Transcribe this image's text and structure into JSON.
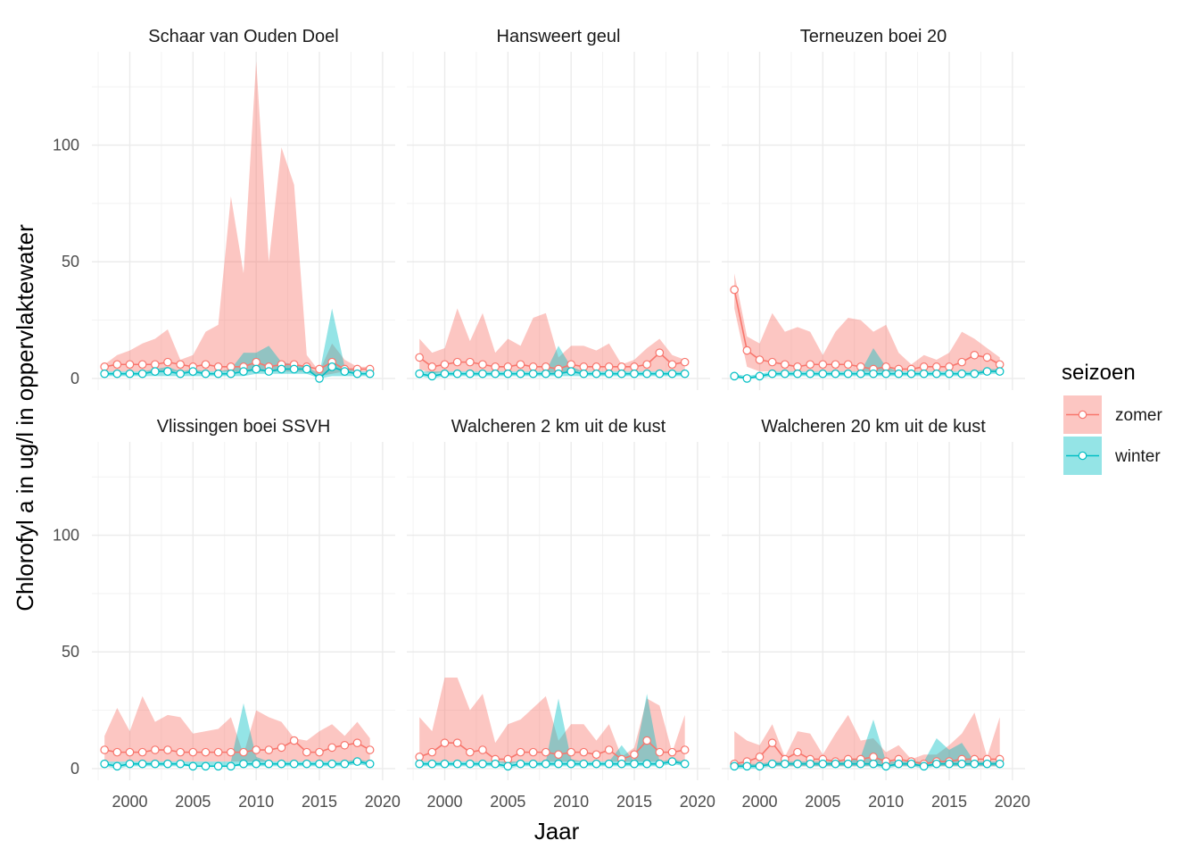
{
  "chart_data": {
    "type": "line",
    "xlabel": "Jaar",
    "ylabel": "Chlorofyl a in ug/l in oppervlaktewater",
    "xlim": [
      1997,
      2021
    ],
    "ylim": [
      -5,
      140
    ],
    "x_ticks": [
      2000,
      2005,
      2010,
      2015,
      2020
    ],
    "y_ticks": [
      0,
      50,
      100
    ],
    "grid": true,
    "legend": {
      "title": "seizoen",
      "placement": "right",
      "entries": [
        {
          "name": "zomer",
          "color": "#F8766D"
        },
        {
          "name": "winter",
          "color": "#00BFC4"
        }
      ]
    },
    "x": [
      1998,
      1999,
      2000,
      2001,
      2002,
      2003,
      2004,
      2005,
      2006,
      2007,
      2008,
      2009,
      2010,
      2011,
      2012,
      2013,
      2014,
      2015,
      2016,
      2017,
      2018,
      2019
    ],
    "panels": [
      {
        "title": "Schaar van Ouden Doel",
        "series": [
          {
            "name": "zomer",
            "mean": [
              5,
              6,
              6,
              6,
              6,
              7,
              6,
              5,
              6,
              5,
              5,
              5,
              7,
              5,
              6,
              6,
              5,
              4,
              7,
              4,
              4,
              4
            ],
            "upper": [
              6,
              10,
              12,
              15,
              17,
              21,
              8,
              10,
              20,
              23,
              78,
              45,
              136,
              50,
              99,
              83,
              10,
              3,
              15,
              8,
              5,
              5
            ],
            "lower": [
              3,
              3,
              3,
              3,
              3,
              3,
              3,
              3,
              3,
              3,
              3,
              3,
              3,
              3,
              3,
              3,
              3,
              1,
              2,
              3,
              3,
              3
            ]
          },
          {
            "name": "winter",
            "mean": [
              2,
              2,
              2,
              2,
              3,
              3,
              2,
              3,
              2,
              2,
              2,
              3,
              4,
              3,
              4,
              4,
              4,
              0,
              5,
              3,
              2,
              2
            ],
            "upper": [
              3,
              3,
              3,
              3,
              4,
              5,
              3,
              4,
              3,
              3,
              4,
              11,
              11,
              14,
              7,
              6,
              5,
              2,
              30,
              5,
              3,
              3
            ],
            "lower": [
              1,
              1,
              1,
              1,
              1,
              1,
              1,
              1,
              1,
              1,
              1,
              1,
              2,
              2,
              2,
              2,
              2,
              0,
              1,
              1,
              1,
              1
            ]
          }
        ]
      },
      {
        "title": "Hansweert geul",
        "series": [
          {
            "name": "zomer",
            "mean": [
              9,
              5,
              6,
              7,
              7,
              6,
              5,
              5,
              6,
              5,
              5,
              4,
              6,
              5,
              5,
              5,
              5,
              5,
              6,
              11,
              6,
              7
            ],
            "upper": [
              17,
              11,
              13,
              30,
              16,
              28,
              11,
              17,
              14,
              26,
              28,
              9,
              14,
              14,
              12,
              15,
              6,
              8,
              13,
              17,
              10,
              8
            ],
            "lower": [
              4,
              2,
              3,
              3,
              3,
              3,
              3,
              3,
              3,
              3,
              3,
              2,
              3,
              3,
              3,
              3,
              3,
              3,
              3,
              3,
              3,
              3
            ]
          },
          {
            "name": "winter",
            "mean": [
              2,
              1,
              2,
              2,
              2,
              2,
              2,
              2,
              2,
              2,
              2,
              2,
              3,
              2,
              2,
              2,
              2,
              2,
              2,
              2,
              2,
              2
            ],
            "upper": [
              3,
              3,
              3,
              3,
              3,
              3,
              3,
              3,
              3,
              3,
              3,
              14,
              5,
              3,
              3,
              3,
              3,
              3,
              3,
              3,
              3,
              3
            ],
            "lower": [
              1,
              0,
              1,
              1,
              1,
              1,
              1,
              1,
              1,
              1,
              1,
              1,
              1,
              1,
              1,
              1,
              1,
              1,
              1,
              1,
              1,
              1
            ]
          }
        ]
      },
      {
        "title": "Terneuzen boei 20",
        "series": [
          {
            "name": "zomer",
            "mean": [
              38,
              12,
              8,
              7,
              6,
              5,
              6,
              6,
              6,
              6,
              5,
              4,
              5,
              4,
              4,
              5,
              5,
              5,
              7,
              10,
              9,
              6
            ],
            "upper": [
              45,
              18,
              15,
              28,
              20,
              22,
              20,
              10,
              20,
              26,
              25,
              20,
              23,
              11,
              6,
              10,
              8,
              11,
              20,
              17,
              13,
              9
            ],
            "lower": [
              30,
              5,
              3,
              3,
              3,
              3,
              3,
              3,
              3,
              3,
              3,
              3,
              3,
              3,
              3,
              3,
              3,
              3,
              3,
              3,
              3,
              3
            ]
          },
          {
            "name": "winter",
            "mean": [
              1,
              0,
              1,
              2,
              2,
              2,
              2,
              2,
              2,
              2,
              2,
              2,
              2,
              2,
              2,
              2,
              2,
              2,
              2,
              2,
              3,
              3
            ],
            "upper": [
              2,
              1,
              2,
              3,
              3,
              3,
              3,
              3,
              3,
              3,
              3,
              13,
              5,
              3,
              3,
              3,
              3,
              3,
              3,
              3,
              4,
              4
            ],
            "lower": [
              0,
              0,
              0,
              1,
              1,
              1,
              1,
              1,
              1,
              1,
              1,
              1,
              1,
              1,
              1,
              1,
              1,
              1,
              1,
              1,
              2,
              2
            ]
          }
        ]
      },
      {
        "title": "Vlissingen boei SSVH",
        "series": [
          {
            "name": "zomer",
            "mean": [
              8,
              7,
              7,
              7,
              8,
              8,
              7,
              7,
              7,
              7,
              7,
              7,
              8,
              8,
              9,
              12,
              7,
              7,
              9,
              10,
              11,
              8
            ],
            "upper": [
              14,
              26,
              16,
              31,
              20,
              23,
              22,
              15,
              16,
              17,
              22,
              6,
              25,
              22,
              20,
              13,
              12,
              16,
              19,
              14,
              20,
              13
            ],
            "lower": [
              3,
              3,
              3,
              3,
              3,
              3,
              3,
              3,
              3,
              3,
              3,
              3,
              3,
              3,
              3,
              3,
              3,
              3,
              3,
              3,
              3,
              3
            ]
          },
          {
            "name": "winter",
            "mean": [
              2,
              1,
              2,
              2,
              2,
              2,
              2,
              1,
              1,
              1,
              1,
              2,
              2,
              2,
              2,
              2,
              2,
              2,
              2,
              2,
              3,
              2
            ],
            "upper": [
              3,
              3,
              3,
              3,
              3,
              3,
              3,
              3,
              3,
              3,
              3,
              28,
              5,
              3,
              3,
              3,
              3,
              3,
              3,
              3,
              4,
              3
            ],
            "lower": [
              1,
              0,
              1,
              1,
              1,
              1,
              1,
              1,
              1,
              1,
              1,
              1,
              1,
              1,
              1,
              1,
              1,
              1,
              1,
              1,
              2,
              1
            ]
          }
        ]
      },
      {
        "title": "Walcheren 2 km uit de kust",
        "series": [
          {
            "name": "zomer",
            "mean": [
              5,
              7,
              11,
              11,
              7,
              8,
              4,
              4,
              7,
              7,
              7,
              6,
              7,
              7,
              6,
              8,
              4,
              6,
              12,
              7,
              7,
              8
            ],
            "upper": [
              22,
              16,
              39,
              39,
              25,
              32,
              11,
              19,
              21,
              26,
              31,
              12,
              19,
              19,
              12,
              19,
              5,
              9,
              30,
              27,
              7,
              23
            ],
            "lower": [
              3,
              3,
              3,
              3,
              3,
              3,
              3,
              2,
              3,
              3,
              3,
              3,
              3,
              3,
              3,
              3,
              3,
              3,
              3,
              3,
              3,
              3
            ]
          },
          {
            "name": "winter",
            "mean": [
              2,
              2,
              2,
              2,
              2,
              2,
              2,
              1,
              2,
              2,
              2,
              2,
              2,
              2,
              2,
              2,
              2,
              2,
              2,
              2,
              3,
              2
            ],
            "upper": [
              3,
              3,
              3,
              3,
              3,
              3,
              3,
              3,
              3,
              3,
              3,
              30,
              4,
              3,
              3,
              3,
              10,
              3,
              32,
              3,
              4,
              3
            ],
            "lower": [
              1,
              1,
              1,
              1,
              1,
              1,
              1,
              0,
              1,
              1,
              1,
              1,
              1,
              1,
              1,
              1,
              1,
              1,
              1,
              1,
              2,
              1
            ]
          }
        ]
      },
      {
        "title": "Walcheren 20 km uit de kust",
        "series": [
          {
            "name": "zomer",
            "mean": [
              2,
              3,
              5,
              11,
              4,
              7,
              4,
              4,
              3,
              4,
              4,
              5,
              3,
              4,
              3,
              2,
              3,
              3,
              4,
              4,
              4,
              4
            ],
            "upper": [
              16,
              12,
              10,
              19,
              5,
              16,
              15,
              6,
              15,
              23,
              12,
              13,
              7,
              10,
              4,
              6,
              6,
              10,
              15,
              24,
              5,
              22
            ],
            "lower": [
              1,
              1,
              1,
              1,
              1,
              1,
              1,
              1,
              1,
              1,
              1,
              1,
              1,
              1,
              1,
              1,
              1,
              1,
              1,
              1,
              1,
              1
            ]
          },
          {
            "name": "winter",
            "mean": [
              1,
              1,
              1,
              2,
              2,
              2,
              2,
              2,
              2,
              2,
              2,
              2,
              1,
              2,
              2,
              1,
              2,
              2,
              2,
              2,
              2,
              2
            ],
            "upper": [
              2,
              2,
              2,
              3,
              3,
              3,
              3,
              3,
              3,
              3,
              5,
              21,
              3,
              3,
              3,
              3,
              13,
              8,
              11,
              3,
              3,
              3
            ],
            "lower": [
              0,
              0,
              0,
              1,
              1,
              1,
              1,
              1,
              1,
              1,
              1,
              1,
              0,
              1,
              1,
              0,
              1,
              1,
              1,
              1,
              1,
              1
            ]
          }
        ]
      }
    ]
  }
}
